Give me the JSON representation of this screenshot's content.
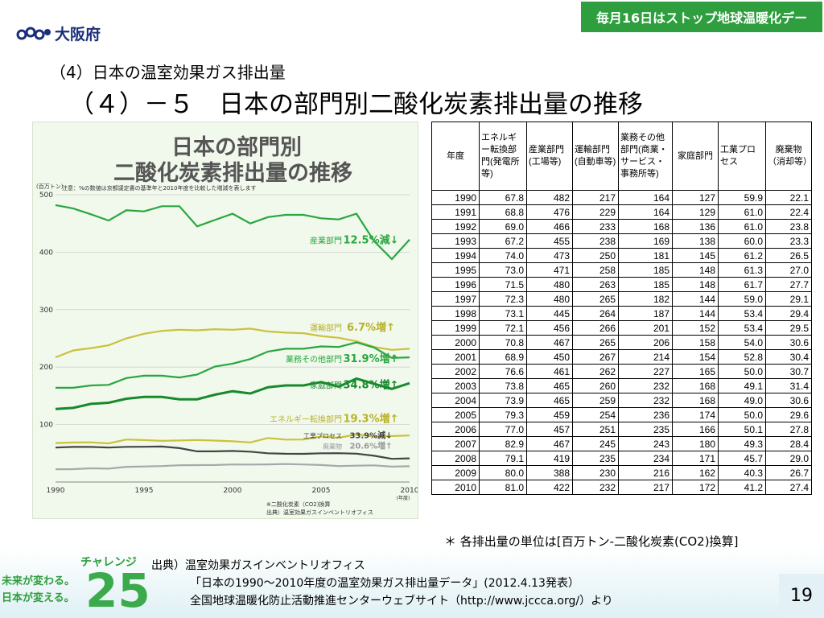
{
  "header": {
    "logo_text": "大阪府",
    "banner": "毎月16日はストップ地球温暖化デー"
  },
  "subtitle": "（4）日本の温室効果ガス排出量",
  "title": "（４）－５　日本の部門別二酸化炭素排出量の推移",
  "chart_panel": {
    "title_line1": "日本の部門別",
    "title_line2": "二酸化炭素排出量の推移",
    "note": "注意：%の数値は京都議定書の基準年と2010年度を比較した増減を表します",
    "unit": "(百万トン)",
    "x_unit": "(年度)",
    "footnote1": "※二酸化炭素（CO2)換算",
    "footnote2": "出典）温室効果ガスインベントリオフィス"
  },
  "chart_data": {
    "type": "line",
    "x": [
      1990,
      1991,
      1992,
      1993,
      1994,
      1995,
      1996,
      1997,
      1998,
      1999,
      2000,
      2001,
      2002,
      2003,
      2004,
      2005,
      2006,
      2007,
      2008,
      2009,
      2010
    ],
    "ylim": [
      0,
      500
    ],
    "yticks": [
      100,
      200,
      300,
      400,
      500
    ],
    "xticks": [
      1990,
      1995,
      2000,
      2005,
      2010
    ],
    "series": [
      {
        "name": "産業部門",
        "change": "12.5",
        "direction": "減",
        "color": "#2aa640",
        "values": [
          482,
          476,
          466,
          455,
          473,
          471,
          480,
          480,
          445,
          456,
          467,
          450,
          461,
          465,
          465,
          459,
          457,
          467,
          419,
          388,
          422
        ]
      },
      {
        "name": "運輸部門",
        "change": "6.7",
        "direction": "増",
        "color": "#c9c23a",
        "values": [
          217,
          229,
          233,
          238,
          250,
          258,
          263,
          265,
          264,
          266,
          265,
          267,
          262,
          260,
          259,
          254,
          251,
          245,
          235,
          230,
          232
        ]
      },
      {
        "name": "業務その他部門",
        "change": "31.9",
        "direction": "増",
        "color": "#2aa640",
        "values": [
          164,
          164,
          168,
          169,
          181,
          185,
          185,
          182,
          187,
          201,
          206,
          214,
          227,
          232,
          232,
          236,
          235,
          243,
          234,
          216,
          217
        ]
      },
      {
        "name": "家庭部門",
        "change": "34.8",
        "direction": "増",
        "color": "#178a2c",
        "values": [
          127,
          129,
          136,
          138,
          145,
          148,
          148,
          144,
          144,
          152,
          158,
          154,
          165,
          168,
          168,
          174,
          166,
          180,
          171,
          162,
          172
        ]
      },
      {
        "name": "エネルギー転換部門",
        "change": "19.3",
        "direction": "増",
        "color": "#c9c23a",
        "values": [
          67.8,
          68.8,
          69.0,
          67.2,
          74.0,
          73.0,
          71.5,
          72.3,
          73.1,
          72.1,
          70.8,
          68.9,
          76.6,
          73.8,
          73.9,
          79.3,
          77.0,
          82.9,
          79.1,
          80.0,
          81.0
        ]
      },
      {
        "name": "工業プロセス",
        "change": "33.9",
        "direction": "減",
        "color": "#444444",
        "values": [
          59.9,
          61.0,
          61.0,
          60.0,
          61.2,
          61.3,
          61.7,
          59.0,
          53.4,
          53.4,
          54.0,
          52.8,
          50.0,
          49.1,
          49.0,
          50.0,
          50.1,
          49.3,
          45.7,
          40.3,
          41.2
        ]
      },
      {
        "name": "廃棄物",
        "change": "20.6",
        "direction": "増",
        "color": "#a8a8a8",
        "values": [
          22.1,
          22.4,
          23.8,
          23.3,
          26.5,
          27.0,
          27.7,
          29.1,
          29.4,
          29.5,
          30.6,
          30.4,
          30.7,
          31.4,
          30.6,
          29.6,
          27.8,
          28.4,
          29.0,
          26.7,
          27.4
        ]
      }
    ]
  },
  "table": {
    "headers": [
      "年度",
      "エネルギー転換部門(発電所等)",
      "産業部門(工場等)",
      "運輸部門(自動車等)",
      "業務その他部門(商業・サービス・事務所等)",
      "家庭部門",
      "工業プロセス",
      "廃棄物（消却等）"
    ],
    "rows": [
      [
        "1990",
        "67.8",
        "482",
        "217",
        "164",
        "127",
        "59.9",
        "22.1"
      ],
      [
        "1991",
        "68.8",
        "476",
        "229",
        "164",
        "129",
        "61.0",
        "22.4"
      ],
      [
        "1992",
        "69.0",
        "466",
        "233",
        "168",
        "136",
        "61.0",
        "23.8"
      ],
      [
        "1993",
        "67.2",
        "455",
        "238",
        "169",
        "138",
        "60.0",
        "23.3"
      ],
      [
        "1994",
        "74.0",
        "473",
        "250",
        "181",
        "145",
        "61.2",
        "26.5"
      ],
      [
        "1995",
        "73.0",
        "471",
        "258",
        "185",
        "148",
        "61.3",
        "27.0"
      ],
      [
        "1996",
        "71.5",
        "480",
        "263",
        "185",
        "148",
        "61.7",
        "27.7"
      ],
      [
        "1997",
        "72.3",
        "480",
        "265",
        "182",
        "144",
        "59.0",
        "29.1"
      ],
      [
        "1998",
        "73.1",
        "445",
        "264",
        "187",
        "144",
        "53.4",
        "29.4"
      ],
      [
        "1999",
        "72.1",
        "456",
        "266",
        "201",
        "152",
        "53.4",
        "29.5"
      ],
      [
        "2000",
        "70.8",
        "467",
        "265",
        "206",
        "158",
        "54.0",
        "30.6"
      ],
      [
        "2001",
        "68.9",
        "450",
        "267",
        "214",
        "154",
        "52.8",
        "30.4"
      ],
      [
        "2002",
        "76.6",
        "461",
        "262",
        "227",
        "165",
        "50.0",
        "30.7"
      ],
      [
        "2003",
        "73.8",
        "465",
        "260",
        "232",
        "168",
        "49.1",
        "31.4"
      ],
      [
        "2004",
        "73.9",
        "465",
        "259",
        "232",
        "168",
        "49.0",
        "30.6"
      ],
      [
        "2005",
        "79.3",
        "459",
        "254",
        "236",
        "174",
        "50.0",
        "29.6"
      ],
      [
        "2006",
        "77.0",
        "457",
        "251",
        "235",
        "166",
        "50.1",
        "27.8"
      ],
      [
        "2007",
        "82.9",
        "467",
        "245",
        "243",
        "180",
        "49.3",
        "28.4"
      ],
      [
        "2008",
        "79.1",
        "419",
        "235",
        "234",
        "171",
        "45.7",
        "29.0"
      ],
      [
        "2009",
        "80.0",
        "388",
        "230",
        "216",
        "162",
        "40.3",
        "26.7"
      ],
      [
        "2010",
        "81.0",
        "422",
        "232",
        "217",
        "172",
        "41.2",
        "27.4"
      ]
    ]
  },
  "unit_note": "＊ 各排出量の単位は[百万トン-二酸化炭素(CO2)換算]",
  "footer": {
    "challenge": "チャレンジ",
    "number": "25",
    "slogan1": "未来が変わる。",
    "slogan2": "日本が変える。",
    "source_line1": "出典）温室効果ガスインベントリオフィス",
    "source_line2": "「日本の1990～2010年度の温室効果ガス排出量データ」(2012.4.13発表）",
    "source_line3": "全国地球温暖化防止活動推進センターウェブサイト（http://www.jccca.org/）より",
    "page_number": "19"
  }
}
